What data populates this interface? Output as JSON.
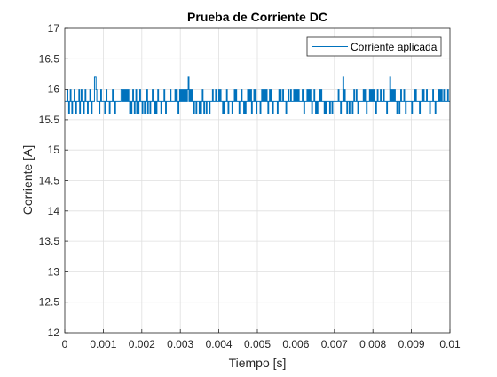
{
  "chart_data": {
    "type": "line",
    "title": "Prueba de Corriente DC",
    "xlabel": "Tiempo [s]",
    "ylabel": "Corriente [A]",
    "xlim": [
      0,
      0.01
    ],
    "ylim": [
      12,
      17
    ],
    "xticks": [
      "0",
      "0.001",
      "0.002",
      "0.003",
      "0.004",
      "0.005",
      "0.006",
      "0.007",
      "0.008",
      "0.009",
      "0.01"
    ],
    "yticks": [
      "12",
      "12.5",
      "13",
      "13.5",
      "14",
      "14.5",
      "15",
      "15.5",
      "16",
      "16.5",
      "17"
    ],
    "grid": true,
    "legend_position": "top-right",
    "colors": {
      "series": "#0072bd",
      "grid": "#dfdfdf",
      "axis": "#262626"
    },
    "series": [
      {
        "name": "Corriente aplicada",
        "levels": [
          15.6,
          15.8,
          16.0,
          16.2
        ],
        "spikes_to_16_2_at_x": [
          0.0008,
          0.00345,
          0.0074,
          0.0088
        ],
        "x_start": 0,
        "x_end": 0.01,
        "x_step": 2e-05,
        "values": [
          15.8,
          15.8,
          15.8,
          16,
          15.8,
          15.6,
          15.8,
          16,
          15.8,
          15.6,
          15.8,
          15.8,
          16,
          15.8,
          15.6,
          15.8,
          15.8,
          15.8,
          16,
          15.6,
          15.8,
          16,
          15.8,
          15.8,
          15.6,
          15.8,
          16,
          15.8,
          15.8,
          15.6,
          15.8,
          15.8,
          16,
          15.8,
          15.6,
          15.8,
          15.8,
          15.8,
          16.2,
          16.2,
          16,
          15.8,
          15.8,
          15.8,
          15.6,
          15.8,
          16,
          15.8,
          15.8,
          15.8,
          15.8,
          15.6,
          15.8,
          16,
          15.8,
          15.8,
          15.8,
          15.6,
          15.8,
          15.8,
          15.8,
          16,
          15.8,
          15.8,
          15.6,
          15.8,
          15.8,
          15.8,
          15.8,
          15.8,
          15.8,
          15.8,
          16,
          16,
          15.8,
          16,
          15.8,
          16,
          15.8,
          16,
          15.8,
          16,
          15.8,
          15.6,
          15.8,
          15.6,
          15.8,
          16,
          15.8,
          15.6,
          15.8,
          16,
          15.6,
          15.8,
          15.6,
          15.8,
          16,
          15.8,
          15.8,
          15.6,
          15.8,
          15.8,
          15.6,
          15.8,
          15.8,
          16,
          15.6,
          15.8,
          15.8,
          15.6,
          15.8,
          15.8,
          16,
          15.8,
          15.8,
          15.6,
          15.8,
          15.6,
          15.8,
          16,
          15.8,
          15.8,
          15.8,
          15.6,
          15.8,
          15.8,
          15.8,
          16,
          15.8,
          15.6,
          15.8,
          15.8,
          15.8,
          15.8,
          15.8,
          16,
          15.8,
          15.8,
          15.8,
          15.8,
          15.8,
          16,
          15.8,
          16,
          15.8,
          15.6,
          15.8,
          16,
          15.8,
          16,
          15.8,
          16,
          15.8,
          16,
          15.8,
          16,
          15.8,
          16,
          16.2,
          15.8,
          16,
          15.8,
          16,
          15.8,
          15.8,
          15.6,
          15.8,
          15.8,
          15.6,
          15.8,
          15.8,
          15.8,
          15.6,
          15.8,
          15.6,
          15.8,
          16,
          15.8,
          15.6,
          15.8,
          15.8,
          15.6,
          15.8,
          15.8,
          15.8,
          15.6,
          15.8,
          15.8,
          15.8,
          16,
          15.8,
          15.8,
          15.8,
          16,
          15.8,
          15.8,
          15.8,
          16,
          15.8,
          16,
          15.8,
          15.8,
          15.6,
          15.8,
          15.6,
          15.8,
          15.8,
          16,
          15.8,
          15.6,
          15.8,
          15.8,
          15.8,
          15.8,
          15.6,
          15.8,
          15.8,
          16,
          15.8,
          16,
          15.8,
          15.8,
          15.8,
          15.6,
          15.8,
          15.8,
          16,
          15.8,
          15.8,
          15.6,
          15.8,
          15.6,
          15.8,
          15.8,
          16,
          15.8,
          16,
          15.8,
          16,
          15.6,
          15.8,
          15.8,
          16,
          15.8,
          16,
          15.6,
          15.8,
          15.8,
          15.8,
          15.8,
          15.6,
          15.8,
          16,
          15.8,
          16,
          15.8,
          16,
          15.8,
          16,
          15.8,
          15.6,
          15.8,
          16,
          15.8,
          16,
          15.8,
          15.6,
          15.8,
          15.8,
          15.8,
          15.8,
          15.8,
          15.6,
          15.8,
          16,
          15.8,
          16,
          15.8,
          15.8,
          16,
          15.8,
          15.8,
          15.8,
          15.6,
          15.8,
          15.8,
          16,
          15.8,
          15.8,
          16,
          15.8,
          15.8,
          15.8,
          16,
          15.8,
          16,
          15.8,
          16,
          15.8,
          16,
          15.8,
          15.8,
          15.8,
          15.8,
          16,
          15.8,
          15.6,
          15.8,
          15.8,
          15.8,
          16,
          15.8,
          16,
          15.8,
          16,
          15.8,
          15.6,
          15.8,
          15.8,
          16,
          15.8,
          15.6,
          15.8,
          15.6,
          15.8,
          15.8,
          16,
          15.8,
          16,
          15.8,
          15.8,
          15.8,
          15.6,
          15.8,
          15.6,
          15.8,
          15.8,
          15.8,
          15.8,
          15.6,
          15.8,
          15.8,
          15.6,
          15.8,
          15.8,
          15.8,
          15.8,
          15.8,
          15.8,
          15.8,
          16,
          15.8,
          15.8,
          15.6,
          15.8,
          15.8,
          16.2,
          15.8,
          16,
          15.8,
          15.8,
          15.6,
          15.8,
          15.8,
          15.6,
          15.8,
          15.8,
          15.8,
          15.6,
          15.8,
          16,
          15.8,
          15.8,
          16,
          15.8,
          15.6,
          15.8,
          15.8,
          15.8,
          15.8,
          15.8,
          15.8,
          16,
          15.8,
          16,
          15.8,
          15.6,
          15.8,
          15.8,
          15.8,
          16,
          15.8,
          16,
          15.8,
          16,
          15.8,
          16,
          15.8,
          15.6,
          15.8,
          16,
          15.8,
          15.8,
          15.8,
          16,
          15.8,
          15.8,
          15.8,
          16,
          15.8,
          15.8,
          15.8,
          15.6,
          15.8,
          15.8,
          15.8,
          16.2,
          15.8,
          16,
          15.8,
          16,
          15.8,
          16,
          15.8,
          15.8,
          15.6,
          15.8,
          15.8,
          15.6,
          15.8,
          16,
          15.8,
          15.8,
          15.8,
          16,
          15.8,
          15.6,
          15.8,
          15.8,
          15.8,
          15.8,
          15.8,
          15.8,
          15.8,
          15.6,
          15.8,
          15.8,
          16,
          15.8,
          16,
          15.8,
          15.8,
          15.8,
          15.8,
          15.6,
          15.8,
          15.8,
          16,
          15.8,
          16,
          15.8,
          15.8,
          15.8,
          16,
          15.8,
          15.8,
          15.8,
          15.6,
          15.8,
          15.8,
          15.8,
          16,
          15.8,
          15.8,
          15.6,
          15.8,
          15.8,
          15.8,
          16,
          15.8,
          16,
          15.8,
          16,
          15.8,
          15.8,
          16,
          15.8,
          15.8,
          15.8,
          15.8,
          16,
          15.8,
          15.8
        ]
      }
    ]
  }
}
